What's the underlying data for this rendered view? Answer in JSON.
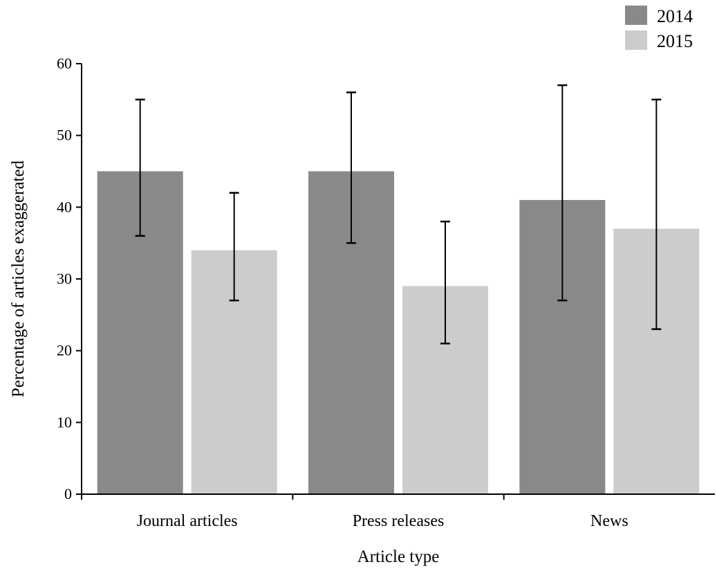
{
  "chart_data": {
    "type": "bar",
    "title": "",
    "xlabel": "Article type",
    "ylabel": "Percentage of articles exaggerated",
    "ylim": [
      0,
      60
    ],
    "yticks": [
      0,
      10,
      20,
      30,
      40,
      50,
      60
    ],
    "categories": [
      "Journal articles",
      "Press releases",
      "News"
    ],
    "series": [
      {
        "name": "2014",
        "color": "#898989",
        "values": [
          45,
          45,
          41
        ],
        "error_low": [
          36,
          35,
          27
        ],
        "error_high": [
          55,
          56,
          57
        ]
      },
      {
        "name": "2015",
        "color": "#cccccc",
        "values": [
          34,
          29,
          37
        ],
        "error_low": [
          27,
          21,
          23
        ],
        "error_high": [
          42,
          38,
          55
        ]
      }
    ],
    "legend": "top-right",
    "grid": false
  }
}
